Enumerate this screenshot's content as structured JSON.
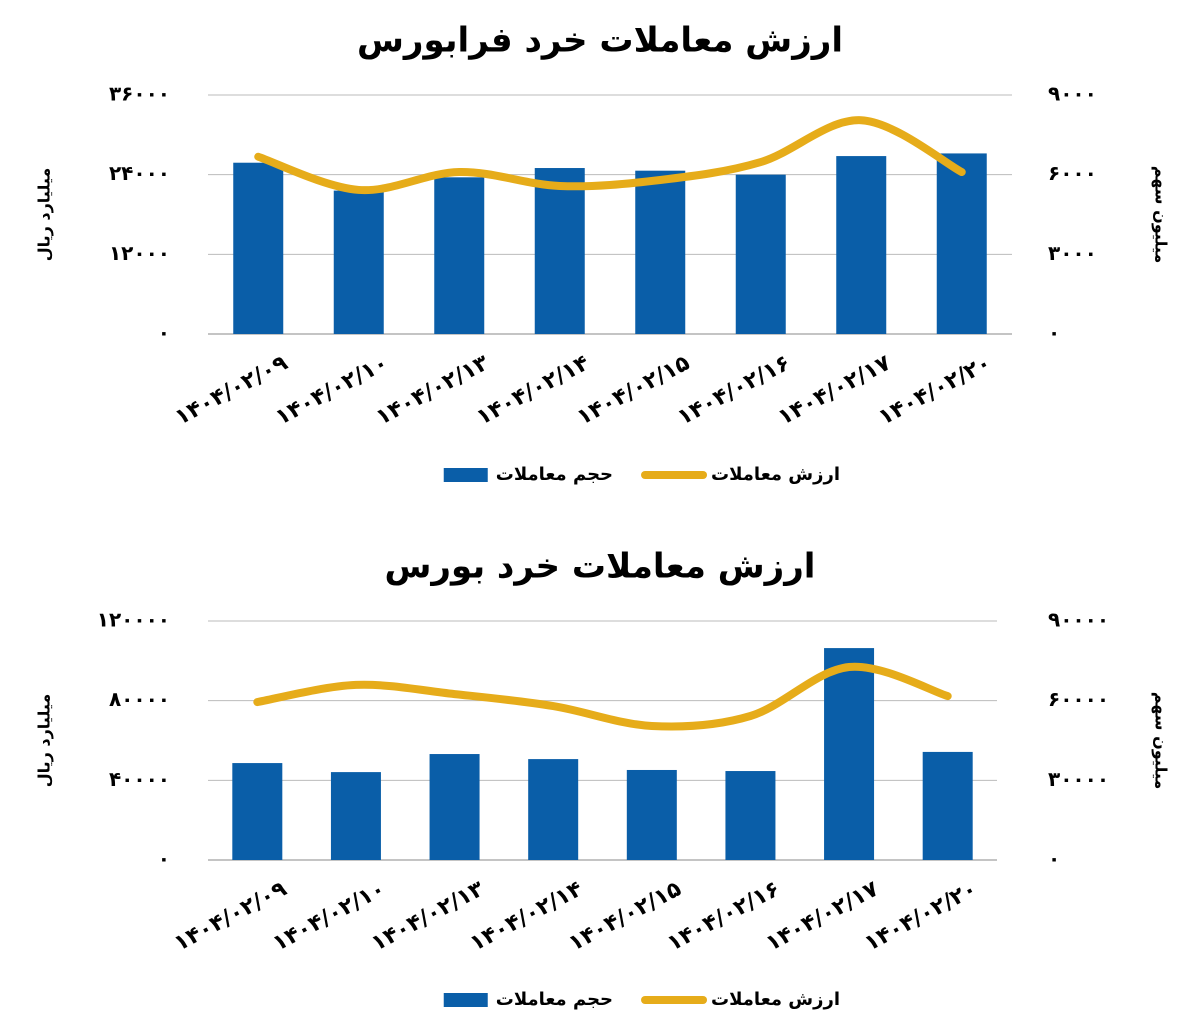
{
  "chart_data": [
    {
      "type": "bar-line",
      "title": "ارزش معاملات خرد فرابورس",
      "y_label": "میلیارد ریال",
      "y2_label": "میلیون سهم",
      "categories": [
        "۱۴۰۴/۰۲/۰۹",
        "۱۴۰۴/۰۲/۱۰",
        "۱۴۰۴/۰۲/۱۳",
        "۱۴۰۴/۰۲/۱۴",
        "۱۴۰۴/۰۲/۱۵",
        "۱۴۰۴/۰۲/۱۶",
        "۱۴۰۴/۰۲/۱۷",
        "۱۴۰۴/۰۲/۲۰"
      ],
      "series": [
        {
          "name": "حجم معاملات",
          "kind": "bar",
          "axis": "y2",
          "color": "#0a5ea8",
          "values": [
            6450,
            5400,
            5900,
            6250,
            6150,
            6000,
            6700,
            6800
          ]
        },
        {
          "name": "ارزش معاملات",
          "kind": "line",
          "axis": "y",
          "color": "#e6ac1a",
          "values": [
            26700,
            21700,
            24400,
            22300,
            23200,
            25900,
            32200,
            24400
          ]
        }
      ],
      "ylim": [
        0,
        36000
      ],
      "yticks": [
        {
          "value": 0,
          "label": "۰"
        },
        {
          "value": 12000,
          "label": "۱۲۰۰۰"
        },
        {
          "value": 24000,
          "label": "۲۴۰۰۰"
        },
        {
          "value": 36000,
          "label": "۳۶۰۰۰"
        }
      ],
      "y2lim": [
        0,
        9000
      ],
      "y2ticks": [
        {
          "value": 0,
          "label": "۰"
        },
        {
          "value": 3000,
          "label": "۳۰۰۰"
        },
        {
          "value": 6000,
          "label": "۶۰۰۰"
        },
        {
          "value": 9000,
          "label": "۹۰۰۰"
        }
      ],
      "grid": true
    },
    {
      "type": "bar-line",
      "title": "ارزش معاملات خرد بورس",
      "y_label": "میلیارد ریال",
      "y2_label": "میلیون سهم",
      "categories": [
        "۱۴۰۴/۰۲/۰۹",
        "۱۴۰۴/۰۲/۱۰",
        "۱۴۰۴/۰۲/۱۳",
        "۱۴۰۴/۰۲/۱۴",
        "۱۴۰۴/۰۲/۱۵",
        "۱۴۰۴/۰۲/۱۶",
        "۱۴۰۴/۰۲/۱۷",
        "۱۴۰۴/۰۲/۲۰"
      ],
      "series": [
        {
          "name": "حجم معاملات",
          "kind": "bar",
          "axis": "y2",
          "color": "#0a5ea8",
          "values": [
            36500,
            33100,
            39900,
            38000,
            33900,
            33500,
            79800,
            40700
          ]
        },
        {
          "name": "ارزش معاملات",
          "kind": "line",
          "axis": "y",
          "color": "#e6ac1a",
          "values": [
            79300,
            87900,
            83300,
            77300,
            67300,
            72300,
            96900,
            82300
          ]
        }
      ],
      "ylim": [
        0,
        120000
      ],
      "yticks": [
        {
          "value": 0,
          "label": "۰"
        },
        {
          "value": 40000,
          "label": "۴۰۰۰۰"
        },
        {
          "value": 80000,
          "label": "۸۰۰۰۰"
        },
        {
          "value": 120000,
          "label": "۱۲۰۰۰۰"
        }
      ],
      "y2lim": [
        0,
        90000
      ],
      "y2ticks": [
        {
          "value": 0,
          "label": "۰"
        },
        {
          "value": 30000,
          "label": "۳۰۰۰۰"
        },
        {
          "value": 60000,
          "label": "۶۰۰۰۰"
        },
        {
          "value": 90000,
          "label": "۹۰۰۰۰"
        }
      ],
      "grid": true
    }
  ]
}
